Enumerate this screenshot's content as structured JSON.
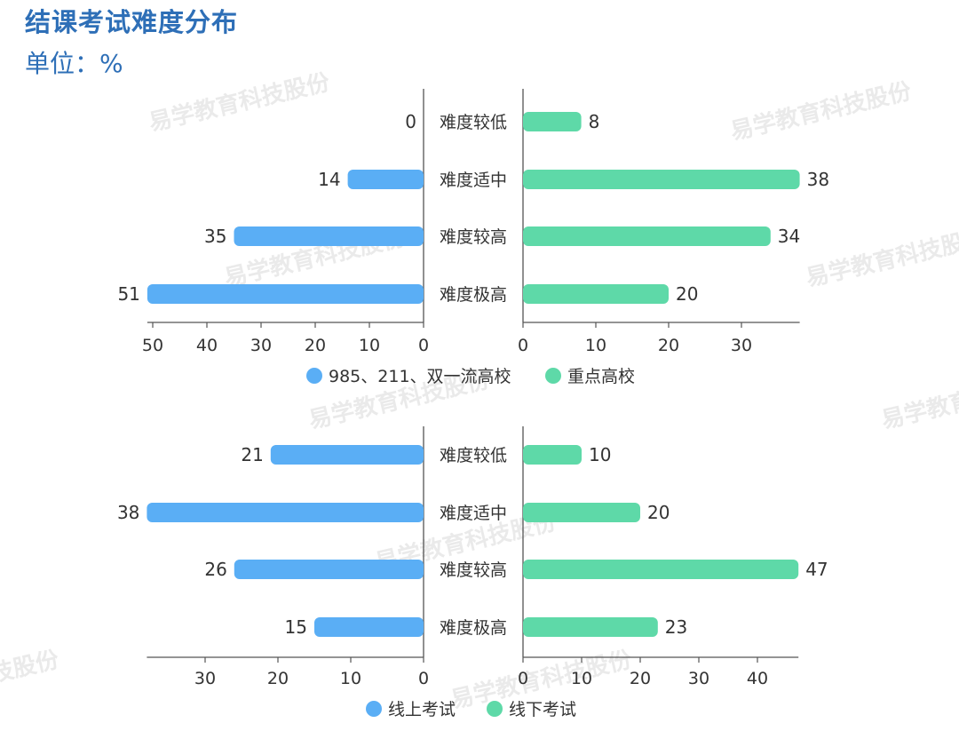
{
  "title": "结课考试难度分布",
  "unit_label": "单位：",
  "unit_symbol": "%",
  "watermark": "易学教育科技股份",
  "colors": {
    "left": "#5aaef5",
    "right": "#5ed9a8",
    "title": "#2e6fb7"
  },
  "chart_data": [
    {
      "type": "bar",
      "categories": [
        "难度较低",
        "难度适中",
        "难度较高",
        "难度极高"
      ],
      "series": [
        {
          "name": "985、211、双一流高校",
          "values": [
            0,
            14,
            35,
            51
          ]
        },
        {
          "name": "重点高校",
          "values": [
            8,
            38,
            34,
            20
          ]
        }
      ],
      "left_ticks": [
        "50",
        "40",
        "30",
        "20",
        "10",
        "0"
      ],
      "right_ticks": [
        "0",
        "10",
        "20",
        "30"
      ],
      "left_xlim": [
        0,
        51
      ],
      "right_xlim": [
        0,
        38
      ],
      "legend": "bottom"
    },
    {
      "type": "bar",
      "categories": [
        "难度较低",
        "难度适中",
        "难度较高",
        "难度极高"
      ],
      "series": [
        {
          "name": "线上考试",
          "values": [
            21,
            38,
            26,
            15
          ]
        },
        {
          "name": "线下考试",
          "values": [
            10,
            20,
            47,
            23
          ]
        }
      ],
      "left_ticks": [
        "30",
        "20",
        "10",
        "0"
      ],
      "right_ticks": [
        "0",
        "10",
        "20",
        "30",
        "40"
      ],
      "left_xlim": [
        0,
        38
      ],
      "right_xlim": [
        0,
        47
      ],
      "legend": "bottom"
    }
  ]
}
